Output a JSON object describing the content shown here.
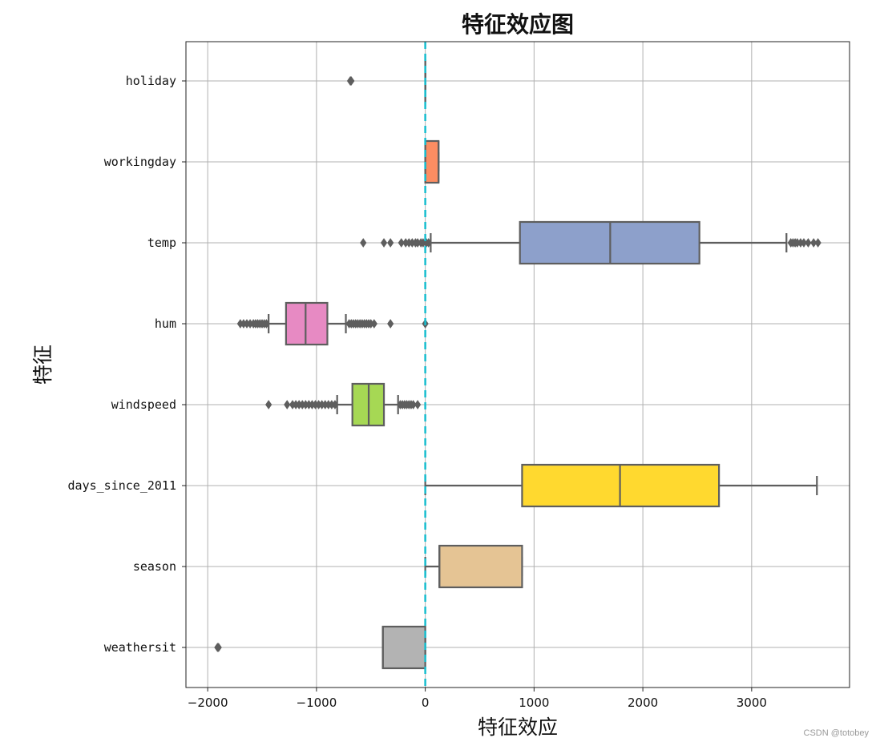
{
  "chart_data": {
    "type": "boxplot",
    "orientation": "horizontal",
    "title": "特征效应图",
    "xlabel": "特征效应",
    "ylabel": "特征",
    "xlim": [
      -2200,
      3900
    ],
    "xticks": [
      -2000,
      -1000,
      0,
      1000,
      2000,
      3000
    ],
    "xtick_labels": [
      "−2000",
      "−1000",
      "0",
      "1000",
      "2000",
      "3000"
    ],
    "grid": true,
    "reference_line": {
      "x": 0,
      "style": "dashed",
      "color": "#17becf"
    },
    "categories": [
      "holiday",
      "workingday",
      "temp",
      "hum",
      "windspeed",
      "days_since_2011",
      "season",
      "weathersit"
    ],
    "series": [
      {
        "label": "holiday",
        "color": "#66c2a5",
        "whisker_low": 0,
        "q1": 0,
        "median": 0,
        "q3": 0,
        "whisker_high": 0,
        "outliers": [
          -690,
          -685,
          -680
        ]
      },
      {
        "label": "workingday",
        "color": "#fc8d62",
        "whisker_low": 0,
        "q1": 0,
        "median": 122,
        "q3": 122,
        "whisker_high": 122,
        "outliers": []
      },
      {
        "label": "temp",
        "color": "#8da0cb",
        "whisker_low": 50,
        "q1": 870,
        "median": 1700,
        "q3": 2520,
        "whisker_high": 3320,
        "outliers": [
          -570,
          -380,
          -320,
          -220,
          -180,
          -150,
          -120,
          -90,
          -70,
          -40,
          -20,
          10,
          30,
          3360,
          3380,
          3400,
          3420,
          3450,
          3480,
          3520,
          3570,
          3610
        ]
      },
      {
        "label": "hum",
        "color": "#e78ac3",
        "whisker_low": -1440,
        "q1": -1280,
        "median": -1100,
        "q3": -900,
        "whisker_high": -730,
        "outliers": [
          -1700,
          -1670,
          -1640,
          -1610,
          -1580,
          -1560,
          -1540,
          -1520,
          -1500,
          -1480,
          -1460,
          -700,
          -680,
          -660,
          -640,
          -620,
          -600,
          -580,
          -560,
          -540,
          -520,
          -500,
          -470,
          -320,
          0
        ]
      },
      {
        "label": "windspeed",
        "color": "#a6d854",
        "whisker_low": -810,
        "q1": -670,
        "median": -520,
        "q3": -380,
        "whisker_high": -250,
        "outliers": [
          -1440,
          -1270,
          -1220,
          -1190,
          -1160,
          -1130,
          -1100,
          -1070,
          -1040,
          -1010,
          -980,
          -950,
          -920,
          -890,
          -860,
          -830,
          -230,
          -210,
          -190,
          -170,
          -150,
          -130,
          -110,
          -70
        ]
      },
      {
        "label": "days_since_2011",
        "color": "#ffd92f",
        "whisker_low": 0,
        "q1": 890,
        "median": 1790,
        "q3": 2700,
        "whisker_high": 3600,
        "outliers": []
      },
      {
        "label": "season",
        "color": "#e5c494",
        "whisker_low": 0,
        "q1": 130,
        "median": 130,
        "q3": 890,
        "whisker_high": 890,
        "outliers": []
      },
      {
        "label": "weathersit",
        "color": "#b3b3b3",
        "whisker_low": -390,
        "q1": -390,
        "median": -390,
        "q3": 0,
        "whisker_high": 0,
        "outliers": [
          -1910,
          -1900
        ]
      }
    ]
  },
  "watermark": "CSDN @totobey"
}
